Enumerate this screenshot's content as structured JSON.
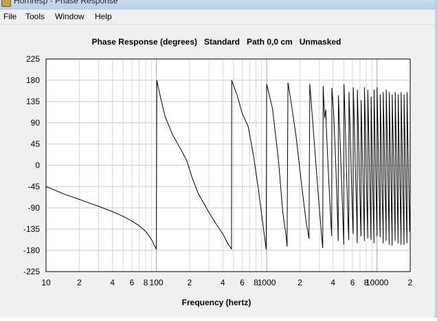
{
  "window": {
    "title": "Hornresp - Phase Response"
  },
  "menu": [
    "File",
    "Tools",
    "Window",
    "Help"
  ],
  "chart_data": {
    "type": "line",
    "title": "Phase Response (degrees)   Standard   Path 0,0 cm   Unmasked",
    "xlabel": "Frequency (hertz)",
    "ylabel": "",
    "xscale": "log",
    "xlim": [
      10,
      20000
    ],
    "ylim": [
      -225,
      225
    ],
    "y_ticks": [
      225,
      180,
      135,
      90,
      45,
      0,
      -45,
      -90,
      -135,
      -180,
      -225
    ],
    "x_ticks": [
      {
        "value": 10,
        "label": "10"
      },
      {
        "value": 20,
        "label": "2"
      },
      {
        "value": 40,
        "label": "4"
      },
      {
        "value": 60,
        "label": "6"
      },
      {
        "value": 80,
        "label": "8"
      },
      {
        "value": 100,
        "label": "100"
      },
      {
        "value": 200,
        "label": "2"
      },
      {
        "value": 400,
        "label": "4"
      },
      {
        "value": 600,
        "label": "6"
      },
      {
        "value": 800,
        "label": "8"
      },
      {
        "value": 1000,
        "label": "1000"
      },
      {
        "value": 2000,
        "label": "2"
      },
      {
        "value": 4000,
        "label": "4"
      },
      {
        "value": 6000,
        "label": "6"
      },
      {
        "value": 8000,
        "label": "8"
      },
      {
        "value": 10000,
        "label": "10000"
      },
      {
        "value": 20000,
        "label": "2"
      }
    ],
    "grid": true,
    "series": [
      {
        "points": [
          [
            10,
            -45
          ],
          [
            15,
            -62
          ],
          [
            20,
            -72
          ],
          [
            30,
            -87
          ],
          [
            40,
            -98
          ],
          [
            50,
            -108
          ],
          [
            60,
            -118
          ],
          [
            70,
            -128
          ],
          [
            80,
            -140
          ],
          [
            90,
            -156
          ],
          [
            95,
            -168
          ],
          [
            100,
            -177
          ],
          [
            101,
            180
          ],
          [
            110,
            140
          ],
          [
            120,
            103
          ],
          [
            140,
            65
          ],
          [
            170,
            30
          ],
          [
            190,
            8
          ],
          [
            210,
            -25
          ],
          [
            240,
            -60
          ],
          [
            300,
            -100
          ],
          [
            350,
            -125
          ],
          [
            400,
            -145
          ],
          [
            450,
            -168
          ],
          [
            480,
            -177
          ],
          [
            482,
            180
          ],
          [
            540,
            148
          ],
          [
            600,
            110
          ],
          [
            680,
            82
          ],
          [
            760,
            20
          ],
          [
            840,
            -50
          ],
          [
            930,
            -130
          ],
          [
            990,
            -178
          ],
          [
            1000,
            172
          ],
          [
            1130,
            120
          ],
          [
            1280,
            10
          ],
          [
            1400,
            -100
          ],
          [
            1500,
            -150
          ],
          [
            1530,
            -172
          ],
          [
            1560,
            175
          ],
          [
            1700,
            120
          ],
          [
            1850,
            60
          ],
          [
            1980,
            0
          ],
          [
            2120,
            -60
          ],
          [
            2280,
            -120
          ],
          [
            2420,
            -155
          ],
          [
            2460,
            172
          ],
          [
            2600,
            100
          ],
          [
            2800,
            0
          ],
          [
            3000,
            -90
          ],
          [
            3150,
            -150
          ],
          [
            3220,
            -175
          ],
          [
            3250,
            168
          ],
          [
            3350,
            100
          ],
          [
            3430,
            118
          ],
          [
            3500,
            60
          ],
          [
            3650,
            -30
          ],
          [
            3800,
            -110
          ],
          [
            3880,
            -150
          ],
          [
            3900,
            164
          ],
          [
            4050,
            110
          ],
          [
            4200,
            20
          ],
          [
            4350,
            -80
          ],
          [
            4450,
            -160
          ],
          [
            4470,
            148
          ],
          [
            4600,
            70
          ],
          [
            4750,
            -20
          ],
          [
            4920,
            -120
          ],
          [
            5000,
            -168
          ],
          [
            5020,
            172
          ],
          [
            5150,
            90
          ],
          [
            5300,
            -20
          ],
          [
            5480,
            -125
          ],
          [
            5550,
            -158
          ],
          [
            5570,
            155
          ],
          [
            5700,
            80
          ],
          [
            5850,
            -20
          ],
          [
            6000,
            -110
          ],
          [
            6080,
            -145
          ],
          [
            6100,
            165
          ],
          [
            6230,
            90
          ],
          [
            6380,
            -10
          ],
          [
            6550,
            -110
          ],
          [
            6620,
            -165
          ],
          [
            6640,
            160
          ],
          [
            6770,
            80
          ],
          [
            6920,
            -20
          ],
          [
            7100,
            -120
          ],
          [
            7160,
            -150
          ],
          [
            7180,
            138
          ],
          [
            7300,
            70
          ],
          [
            7450,
            -20
          ],
          [
            7620,
            -120
          ],
          [
            7680,
            -160
          ],
          [
            7700,
            165
          ],
          [
            7830,
            90
          ],
          [
            7990,
            -20
          ],
          [
            8180,
            -120
          ],
          [
            8240,
            -155
          ],
          [
            8260,
            160
          ],
          [
            8400,
            80
          ],
          [
            8570,
            -20
          ],
          [
            8770,
            -130
          ],
          [
            8820,
            -158
          ],
          [
            8840,
            145
          ],
          [
            8980,
            60
          ],
          [
            9150,
            -40
          ],
          [
            9330,
            -130
          ],
          [
            9380,
            -165
          ],
          [
            9400,
            160
          ],
          [
            9560,
            80
          ],
          [
            9740,
            -20
          ],
          [
            9960,
            -130
          ],
          [
            10000,
            -150
          ],
          [
            10020,
            165
          ],
          [
            10200,
            80
          ],
          [
            10400,
            -30
          ],
          [
            10620,
            -130
          ],
          [
            10680,
            -152
          ],
          [
            10700,
            150
          ],
          [
            10900,
            60
          ],
          [
            11100,
            -50
          ],
          [
            11330,
            -130
          ],
          [
            11380,
            -165
          ],
          [
            11400,
            155
          ],
          [
            11600,
            70
          ],
          [
            11800,
            -30
          ],
          [
            12050,
            -130
          ],
          [
            12100,
            -160
          ],
          [
            12120,
            160
          ],
          [
            12350,
            70
          ],
          [
            12580,
            -30
          ],
          [
            12830,
            -130
          ],
          [
            12890,
            -168
          ],
          [
            12910,
            155
          ],
          [
            13150,
            60
          ],
          [
            13400,
            -40
          ],
          [
            13660,
            -140
          ],
          [
            13720,
            -170
          ],
          [
            13740,
            150
          ],
          [
            14000,
            60
          ],
          [
            14270,
            -40
          ],
          [
            14540,
            -135
          ],
          [
            14600,
            -160
          ],
          [
            14620,
            155
          ],
          [
            14900,
            60
          ],
          [
            15180,
            -40
          ],
          [
            15470,
            -135
          ],
          [
            15540,
            -165
          ],
          [
            15560,
            150
          ],
          [
            15850,
            50
          ],
          [
            16150,
            -50
          ],
          [
            16460,
            -140
          ],
          [
            16530,
            -168
          ],
          [
            16550,
            155
          ],
          [
            16860,
            55
          ],
          [
            17180,
            -50
          ],
          [
            17510,
            -145
          ],
          [
            17580,
            -168
          ],
          [
            17600,
            150
          ],
          [
            17930,
            50
          ],
          [
            18280,
            -50
          ],
          [
            18620,
            -145
          ],
          [
            18700,
            -165
          ],
          [
            18720,
            155
          ],
          [
            19080,
            50
          ],
          [
            19440,
            -55
          ],
          [
            19800,
            -140
          ],
          [
            19950,
            -100
          ],
          [
            20000,
            176
          ]
        ]
      }
    ]
  }
}
